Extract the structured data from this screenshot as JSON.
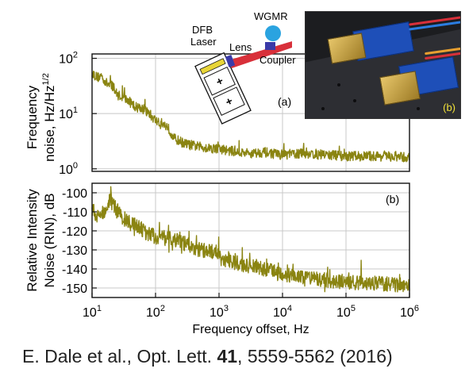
{
  "figure": {
    "panel_a_label": "(a)",
    "panel_b_label": "(b)",
    "photo_label": "(b)",
    "inset": {
      "dfb_line1": "DFB",
      "dfb_line2": "Laser",
      "lens": "Lens",
      "wgmr": "WGMR",
      "coupler": "Coupler",
      "plus_symbol": "+"
    },
    "colors": {
      "trace": "#8a8411",
      "laser_body": "#e8d538",
      "beam": "#d8303a",
      "wgmr": "#2aa3e0",
      "coupler": "#3a3aa8"
    }
  },
  "citation": {
    "authors": "E. Dale et al., Opt. Lett. ",
    "volume": "41",
    "pages": ", 5559-5562 (2016)"
  },
  "chart_data": [
    {
      "type": "line",
      "title": "",
      "xlabel": "",
      "ylabel": "Frequency noise, Hz/Hz^1/2",
      "ylabel_lines": [
        "Frequency",
        "noise, Hz/Hz"
      ],
      "ylabel_sup": "1/2",
      "xscale": "log",
      "yscale": "log",
      "xlim": [
        10,
        1000000
      ],
      "ylim": [
        0.9,
        120
      ],
      "yticks": [
        1,
        10,
        100
      ],
      "ytick_bases": [
        "10",
        "10",
        "10"
      ],
      "ytick_exps": [
        "0",
        "1",
        "2"
      ],
      "grid": true,
      "series": [
        {
          "color": "#8a8411",
          "x": [
            10,
            12,
            14,
            17,
            20,
            25,
            30,
            40,
            50,
            60,
            70,
            80,
            90,
            100,
            120,
            150,
            200,
            300,
            500,
            700,
            1000,
            2000,
            3000,
            5000,
            10000,
            20000,
            50000,
            100000,
            300000,
            1000000
          ],
          "y": [
            55,
            45,
            48,
            35,
            33,
            22,
            20,
            16,
            13,
            13,
            11,
            10,
            8.5,
            7.5,
            6.5,
            6,
            3.5,
            2.8,
            2.5,
            2.4,
            2.3,
            2.0,
            1.9,
            2.0,
            1.8,
            1.9,
            1.8,
            1.7,
            1.7,
            1.6
          ]
        }
      ]
    },
    {
      "type": "line",
      "title": "",
      "xlabel": "Frequency offset, Hz",
      "ylabel": "Relative Intensity Noise (RIN), dB",
      "ylabel_lines": [
        "Relative Intensity",
        "Noise (RIN), dB"
      ],
      "xscale": "log",
      "yscale": "linear",
      "xlim": [
        10,
        1000000
      ],
      "ylim": [
        -155,
        -95
      ],
      "yticks": [
        -150,
        -140,
        -130,
        -120,
        -110,
        -100
      ],
      "xticks": [
        10,
        100,
        1000,
        10000,
        100000,
        1000000
      ],
      "xtick_bases": [
        "10",
        "10",
        "10",
        "10",
        "10",
        "10"
      ],
      "xtick_exps": [
        "1",
        "2",
        "3",
        "4",
        "5",
        "6"
      ],
      "grid": true,
      "series": [
        {
          "color": "#8a8411",
          "x": [
            10,
            12,
            15,
            18,
            20,
            22,
            25,
            30,
            40,
            50,
            60,
            70,
            80,
            100,
            150,
            200,
            300,
            500,
            700,
            900,
            1000,
            2000,
            5000,
            10000,
            20000,
            50000,
            100000,
            200000,
            500000,
            1000000
          ],
          "y": [
            -108,
            -113,
            -110,
            -106,
            -102,
            -106,
            -110,
            -113,
            -116,
            -118,
            -119,
            -121,
            -122,
            -123,
            -124,
            -125,
            -127,
            -130,
            -131,
            -131,
            -134,
            -137,
            -140,
            -143,
            -145,
            -146,
            -147,
            -147,
            -148,
            -149
          ]
        }
      ]
    }
  ]
}
